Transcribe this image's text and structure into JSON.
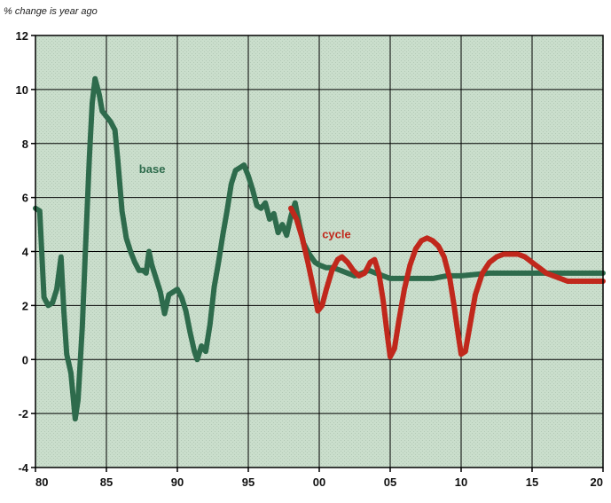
{
  "chart_data": {
    "type": "line",
    "ylabel": "% change is year ago",
    "xlim": [
      1980,
      2020
    ],
    "ylim": [
      -4,
      12
    ],
    "x_ticks": [
      1980,
      1985,
      1990,
      1995,
      2000,
      2005,
      2010,
      2015,
      2020
    ],
    "x_tick_labels": [
      "80",
      "85",
      "90",
      "95",
      "00",
      "05",
      "10",
      "15",
      "20"
    ],
    "y_ticks": [
      -4,
      -2,
      0,
      2,
      4,
      6,
      8,
      10,
      12
    ],
    "y_tick_labels": [
      "-4",
      "-2",
      "0",
      "2",
      "4",
      "6",
      "8",
      "10",
      "12"
    ],
    "grid": true,
    "background_color": "#c8dccb",
    "series": [
      {
        "name": "base",
        "color": "#2e6b4c",
        "label_at": [
          1987.3,
          6.9
        ],
        "points": [
          [
            1980.0,
            5.6
          ],
          [
            1980.3,
            5.5
          ],
          [
            1980.6,
            2.3
          ],
          [
            1980.9,
            2.0
          ],
          [
            1981.2,
            2.1
          ],
          [
            1981.5,
            2.6
          ],
          [
            1981.8,
            3.8
          ],
          [
            1982.0,
            1.8
          ],
          [
            1982.2,
            0.2
          ],
          [
            1982.5,
            -0.5
          ],
          [
            1982.8,
            -2.2
          ],
          [
            1983.0,
            -1.5
          ],
          [
            1983.3,
            1.2
          ],
          [
            1983.5,
            3.8
          ],
          [
            1983.8,
            7.5
          ],
          [
            1984.0,
            9.5
          ],
          [
            1984.2,
            10.4
          ],
          [
            1984.5,
            9.8
          ],
          [
            1984.7,
            9.2
          ],
          [
            1985.0,
            9.0
          ],
          [
            1985.3,
            8.8
          ],
          [
            1985.6,
            8.5
          ],
          [
            1985.8,
            7.4
          ],
          [
            1986.1,
            5.5
          ],
          [
            1986.4,
            4.5
          ],
          [
            1986.7,
            4.0
          ],
          [
            1987.0,
            3.6
          ],
          [
            1987.3,
            3.3
          ],
          [
            1987.6,
            3.3
          ],
          [
            1987.8,
            3.2
          ],
          [
            1988.0,
            4.0
          ],
          [
            1988.2,
            3.5
          ],
          [
            1988.5,
            3.0
          ],
          [
            1988.8,
            2.5
          ],
          [
            1989.1,
            1.7
          ],
          [
            1989.4,
            2.4
          ],
          [
            1989.7,
            2.5
          ],
          [
            1990.0,
            2.6
          ],
          [
            1990.3,
            2.3
          ],
          [
            1990.6,
            1.8
          ],
          [
            1990.9,
            1.0
          ],
          [
            1991.2,
            0.3
          ],
          [
            1991.4,
            0.0
          ],
          [
            1991.7,
            0.5
          ],
          [
            1992.0,
            0.3
          ],
          [
            1992.3,
            1.3
          ],
          [
            1992.6,
            2.7
          ],
          [
            1992.9,
            3.6
          ],
          [
            1993.2,
            4.6
          ],
          [
            1993.5,
            5.5
          ],
          [
            1993.8,
            6.5
          ],
          [
            1994.1,
            7.0
          ],
          [
            1994.4,
            7.1
          ],
          [
            1994.7,
            7.2
          ],
          [
            1995.0,
            6.8
          ],
          [
            1995.3,
            6.3
          ],
          [
            1995.6,
            5.7
          ],
          [
            1995.9,
            5.6
          ],
          [
            1996.2,
            5.8
          ],
          [
            1996.5,
            5.2
          ],
          [
            1996.8,
            5.4
          ],
          [
            1997.1,
            4.7
          ],
          [
            1997.4,
            5.0
          ],
          [
            1997.7,
            4.6
          ],
          [
            1998.0,
            5.3
          ],
          [
            1998.3,
            5.8
          ],
          [
            1998.6,
            5.0
          ],
          [
            1998.9,
            4.3
          ],
          [
            1999.3,
            3.9
          ],
          [
            1999.7,
            3.6
          ],
          [
            2000.0,
            3.5
          ],
          [
            2000.5,
            3.4
          ],
          [
            2001.0,
            3.4
          ],
          [
            2001.5,
            3.3
          ],
          [
            2002.0,
            3.2
          ],
          [
            2002.5,
            3.1
          ],
          [
            2003.0,
            3.2
          ],
          [
            2003.5,
            3.3
          ],
          [
            2004.0,
            3.2
          ],
          [
            2005.0,
            3.0
          ],
          [
            2006.0,
            3.0
          ],
          [
            2007.0,
            3.0
          ],
          [
            2008.0,
            3.0
          ],
          [
            2009.0,
            3.1
          ],
          [
            2010.0,
            3.1
          ],
          [
            2012.0,
            3.2
          ],
          [
            2014.0,
            3.2
          ],
          [
            2016.0,
            3.2
          ],
          [
            2018.0,
            3.2
          ],
          [
            2020.0,
            3.2
          ]
        ]
      },
      {
        "name": "cycle",
        "color": "#c0281c",
        "label_at": [
          2000.2,
          4.5
        ],
        "points": [
          [
            1998.0,
            5.6
          ],
          [
            1998.4,
            5.2
          ],
          [
            1998.8,
            4.5
          ],
          [
            1999.2,
            3.6
          ],
          [
            1999.6,
            2.6
          ],
          [
            1999.9,
            1.8
          ],
          [
            2000.2,
            2.0
          ],
          [
            2000.5,
            2.6
          ],
          [
            2000.9,
            3.3
          ],
          [
            2001.3,
            3.7
          ],
          [
            2001.6,
            3.8
          ],
          [
            2002.0,
            3.6
          ],
          [
            2002.4,
            3.3
          ],
          [
            2002.8,
            3.1
          ],
          [
            2003.2,
            3.2
          ],
          [
            2003.6,
            3.6
          ],
          [
            2003.9,
            3.7
          ],
          [
            2004.2,
            3.2
          ],
          [
            2004.5,
            2.2
          ],
          [
            2004.8,
            0.9
          ],
          [
            2005.0,
            0.1
          ],
          [
            2005.3,
            0.4
          ],
          [
            2005.6,
            1.4
          ],
          [
            2006.0,
            2.6
          ],
          [
            2006.4,
            3.5
          ],
          [
            2006.8,
            4.1
          ],
          [
            2007.2,
            4.4
          ],
          [
            2007.6,
            4.5
          ],
          [
            2008.0,
            4.4
          ],
          [
            2008.4,
            4.2
          ],
          [
            2008.8,
            3.8
          ],
          [
            2009.2,
            3.0
          ],
          [
            2009.5,
            2.0
          ],
          [
            2009.8,
            0.9
          ],
          [
            2010.0,
            0.2
          ],
          [
            2010.3,
            0.3
          ],
          [
            2010.6,
            1.2
          ],
          [
            2011.0,
            2.4
          ],
          [
            2011.5,
            3.2
          ],
          [
            2012.0,
            3.6
          ],
          [
            2012.5,
            3.8
          ],
          [
            2013.0,
            3.9
          ],
          [
            2013.5,
            3.9
          ],
          [
            2014.0,
            3.9
          ],
          [
            2014.5,
            3.8
          ],
          [
            2015.0,
            3.6
          ],
          [
            2015.5,
            3.4
          ],
          [
            2016.0,
            3.2
          ],
          [
            2016.5,
            3.1
          ],
          [
            2017.0,
            3.0
          ],
          [
            2017.5,
            2.9
          ],
          [
            2018.0,
            2.9
          ],
          [
            2019.0,
            2.9
          ],
          [
            2020.0,
            2.9
          ]
        ]
      }
    ]
  }
}
